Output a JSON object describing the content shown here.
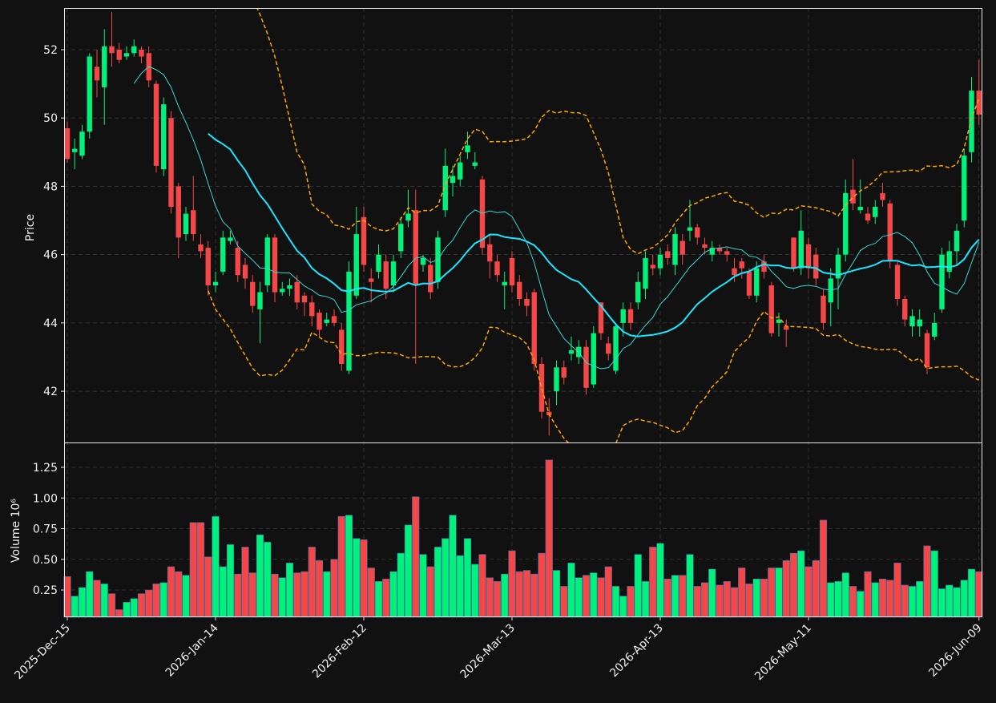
{
  "chart_data": {
    "type": "candlestick",
    "categories": [
      "2025-Dec-15",
      null,
      null,
      null,
      null,
      null,
      null,
      null,
      null,
      null,
      null,
      null,
      null,
      null,
      null,
      null,
      null,
      null,
      null,
      null,
      "2026-Jan-14",
      null,
      null,
      null,
      null,
      null,
      null,
      null,
      null,
      null,
      null,
      null,
      null,
      null,
      null,
      null,
      null,
      null,
      null,
      null,
      "2026-Feb-12",
      null,
      null,
      null,
      null,
      null,
      null,
      null,
      null,
      null,
      null,
      null,
      null,
      null,
      null,
      null,
      null,
      null,
      null,
      null,
      "2026-Mar-13",
      null,
      null,
      null,
      null,
      null,
      null,
      null,
      null,
      null,
      null,
      null,
      null,
      null,
      null,
      null,
      null,
      null,
      null,
      null,
      "2026-Apr-13",
      null,
      null,
      null,
      null,
      null,
      null,
      null,
      null,
      null,
      null,
      null,
      null,
      null,
      null,
      null,
      null,
      null,
      null,
      null,
      "2026-May-11",
      null,
      null,
      null,
      null,
      null,
      null,
      null,
      null,
      null,
      null,
      null,
      null,
      null,
      null,
      null,
      null,
      null,
      null,
      null,
      null,
      null,
      null,
      "2026-Jun-09"
    ],
    "open": [
      49.7,
      49.0,
      48.9,
      49.6,
      51.5,
      50.9,
      52.1,
      52.0,
      51.8,
      51.9,
      52.0,
      51.9,
      51.0,
      48.5,
      50.0,
      48.0,
      46.6,
      47.3,
      46.3,
      46.2,
      45.1,
      45.5,
      46.4,
      46.2,
      45.7,
      45.2,
      44.4,
      45.1,
      46.5,
      44.9,
      45.0,
      45.2,
      44.8,
      44.6,
      44.3,
      44.0,
      44.2,
      43.8,
      42.6,
      44.8,
      47.1,
      45.3,
      45.5,
      45.8,
      45.1,
      46.1,
      47.0,
      47.3,
      45.7,
      45.7,
      45.2,
      47.3,
      48.1,
      48.2,
      49.0,
      48.6,
      48.2,
      46.3,
      45.8,
      45.1,
      45.9,
      45.2,
      44.7,
      44.9,
      42.8,
      41.4,
      42.0,
      42.7,
      43.1,
      43.0,
      43.3,
      42.2,
      44.6,
      43.4,
      42.6,
      44.0,
      44.4,
      44.6,
      45.0,
      45.7,
      45.6,
      46.1,
      45.7,
      46.4,
      46.7,
      46.8,
      46.3,
      46.0,
      46.2,
      46.1,
      45.6,
      45.8,
      45.5,
      44.8,
      45.8,
      45.1,
      44.0,
      43.9,
      46.5,
      45.6,
      46.3,
      46.0,
      44.8,
      44.6,
      45.3,
      46.0,
      47.9,
      47.3,
      47.2,
      47.1,
      47.8,
      47.5,
      45.7,
      44.7,
      43.9,
      43.9,
      43.7,
      43.6,
      44.4,
      45.5,
      46.1,
      47.0,
      49.0,
      50.8
    ],
    "high": [
      49.9,
      49.4,
      49.8,
      51.9,
      52.0,
      52.6,
      53.1,
      52.2,
      52.1,
      52.3,
      52.1,
      52.1,
      51.1,
      50.6,
      50.2,
      48.1,
      47.4,
      48.3,
      46.6,
      46.4,
      45.5,
      46.7,
      46.7,
      46.4,
      45.9,
      45.4,
      45.2,
      46.6,
      46.6,
      45.2,
      45.3,
      45.4,
      44.9,
      44.8,
      44.4,
      44.3,
      44.4,
      44.0,
      45.8,
      47.4,
      47.4,
      45.6,
      46.3,
      46.0,
      46.0,
      47.1,
      47.9,
      47.9,
      46.0,
      45.9,
      46.7,
      49.1,
      48.6,
      48.9,
      49.6,
      49.0,
      48.3,
      46.6,
      46.0,
      45.5,
      46.1,
      45.4,
      44.9,
      45.0,
      43.0,
      41.8,
      42.9,
      42.9,
      43.6,
      43.5,
      43.5,
      43.9,
      44.6,
      43.6,
      44.0,
      44.6,
      44.6,
      45.5,
      46.1,
      46.0,
      46.2,
      46.3,
      46.8,
      46.6,
      47.6,
      46.9,
      46.5,
      46.4,
      46.3,
      46.2,
      45.9,
      45.9,
      45.6,
      45.8,
      46.0,
      45.2,
      44.3,
      44.1,
      46.5,
      47.3,
      46.5,
      46.2,
      45.0,
      45.6,
      46.2,
      48.2,
      48.8,
      48.2,
      47.4,
      47.6,
      48.1,
      47.6,
      45.8,
      44.8,
      44.4,
      44.4,
      43.8,
      44.3,
      46.2,
      46.4,
      46.9,
      49.1,
      51.2,
      51.7
    ],
    "low": [
      48.7,
      48.5,
      48.8,
      49.4,
      50.6,
      49.8,
      51.5,
      51.6,
      51.7,
      51.8,
      51.6,
      50.9,
      48.4,
      48.3,
      47.2,
      45.9,
      46.4,
      46.4,
      45.9,
      44.8,
      44.9,
      45.4,
      46.3,
      45.2,
      45.0,
      44.3,
      43.4,
      44.9,
      44.6,
      44.8,
      44.8,
      44.4,
      44.2,
      43.9,
      43.6,
      43.9,
      43.9,
      42.6,
      42.5,
      44.7,
      45.5,
      44.6,
      45.3,
      44.7,
      44.9,
      45.9,
      46.8,
      42.8,
      45.5,
      44.7,
      45.0,
      47.1,
      47.7,
      48.0,
      48.8,
      48.5,
      46.0,
      45.3,
      45.2,
      44.4,
      44.9,
      44.5,
      44.2,
      42.6,
      41.2,
      40.7,
      41.6,
      42.2,
      42.9,
      42.8,
      41.9,
      42.1,
      43.5,
      42.9,
      42.5,
      43.6,
      43.8,
      44.4,
      44.7,
      45.4,
      45.4,
      45.7,
      45.4,
      45.7,
      46.4,
      46.3,
      46.0,
      45.8,
      46.0,
      45.8,
      45.2,
      45.3,
      44.7,
      44.6,
      45.3,
      43.6,
      43.6,
      43.3,
      45.5,
      45.4,
      45.3,
      45.1,
      43.8,
      43.9,
      44.4,
      45.8,
      47.3,
      47.2,
      46.9,
      46.9,
      47.4,
      45.6,
      44.5,
      43.9,
      43.6,
      43.6,
      42.5,
      43.5,
      44.3,
      45.3,
      45.7,
      46.8,
      48.7,
      49.8
    ],
    "close": [
      48.8,
      49.1,
      49.6,
      51.8,
      51.1,
      52.1,
      51.9,
      51.7,
      51.9,
      52.1,
      51.8,
      51.1,
      48.6,
      50.4,
      47.4,
      46.5,
      47.2,
      46.6,
      46.1,
      45.1,
      45.2,
      46.5,
      46.5,
      45.4,
      45.3,
      44.5,
      44.9,
      46.5,
      44.9,
      45.0,
      45.1,
      44.6,
      44.6,
      44.2,
      43.8,
      44.1,
      44.0,
      42.8,
      45.5,
      46.6,
      45.7,
      45.2,
      46.0,
      45.0,
      45.8,
      46.9,
      47.2,
      45.1,
      45.9,
      44.9,
      46.5,
      48.6,
      48.3,
      48.7,
      49.2,
      48.7,
      46.2,
      45.8,
      45.4,
      45.2,
      45.1,
      44.7,
      44.5,
      42.8,
      41.4,
      41.3,
      42.7,
      42.4,
      43.2,
      43.3,
      42.1,
      43.7,
      43.7,
      43.1,
      43.9,
      44.4,
      44.0,
      45.2,
      45.9,
      45.6,
      46.0,
      45.9,
      46.6,
      46.0,
      46.8,
      46.5,
      46.2,
      46.2,
      46.1,
      46.0,
      45.4,
      45.6,
      44.8,
      45.6,
      45.5,
      43.7,
      44.1,
      43.8,
      45.6,
      46.7,
      45.6,
      45.3,
      44.0,
      45.3,
      46.0,
      47.8,
      47.5,
      47.4,
      47.0,
      47.4,
      47.6,
      45.8,
      44.7,
      44.1,
      44.2,
      44.1,
      42.7,
      44.0,
      46.0,
      46.1,
      46.7,
      48.9,
      50.8,
      50.1
    ],
    "volume": [
      0.36,
      0.2,
      0.27,
      0.4,
      0.33,
      0.3,
      0.22,
      0.09,
      0.15,
      0.18,
      0.22,
      0.25,
      0.3,
      0.31,
      0.44,
      0.4,
      0.37,
      0.8,
      0.8,
      0.52,
      0.85,
      0.44,
      0.62,
      0.38,
      0.6,
      0.39,
      0.7,
      0.64,
      0.38,
      0.35,
      0.47,
      0.39,
      0.4,
      0.6,
      0.49,
      0.4,
      0.5,
      0.85,
      0.86,
      0.67,
      0.66,
      0.43,
      0.32,
      0.34,
      0.4,
      0.55,
      0.78,
      1.01,
      0.54,
      0.44,
      0.6,
      0.67,
      0.86,
      0.53,
      0.67,
      0.46,
      0.54,
      0.35,
      0.32,
      0.38,
      0.57,
      0.4,
      0.41,
      0.38,
      0.55,
      1.31,
      0.41,
      0.28,
      0.47,
      0.35,
      0.37,
      0.39,
      0.35,
      0.44,
      0.28,
      0.2,
      0.28,
      0.54,
      0.32,
      0.6,
      0.63,
      0.34,
      0.37,
      0.37,
      0.54,
      0.28,
      0.31,
      0.42,
      0.29,
      0.32,
      0.27,
      0.43,
      0.3,
      0.34,
      0.34,
      0.43,
      0.43,
      0.49,
      0.55,
      0.57,
      0.44,
      0.49,
      0.82,
      0.31,
      0.32,
      0.39,
      0.28,
      0.24,
      0.4,
      0.31,
      0.34,
      0.33,
      0.47,
      0.29,
      0.28,
      0.32,
      0.61,
      0.57,
      0.26,
      0.29,
      0.27,
      0.33,
      0.42,
      0.4
    ],
    "up_color": "#00f27a",
    "down_color": "#f44848",
    "moving_averages": [
      {
        "window": 10,
        "color": "#3ad6d0",
        "width": 1
      },
      {
        "window": 20,
        "color": "#19e6ff",
        "width": 2
      }
    ],
    "bollinger": {
      "window": 20,
      "std": 2,
      "color": "#ffa500"
    },
    "ylabel": "Price",
    "ylim": [
      40.5,
      53.22
    ],
    "yticks": [
      42,
      44,
      46,
      48,
      50,
      52
    ],
    "volume_ylabel": "Volume  10⁶",
    "volume_ylim": [
      0.028,
      1.446
    ],
    "volume_yticks": [
      0.25,
      {
        "value": 0.5,
        "label": "0.50"
      },
      0.75,
      {
        "value": 1,
        "label": "1.00"
      },
      1.25
    ],
    "grid": true
  }
}
